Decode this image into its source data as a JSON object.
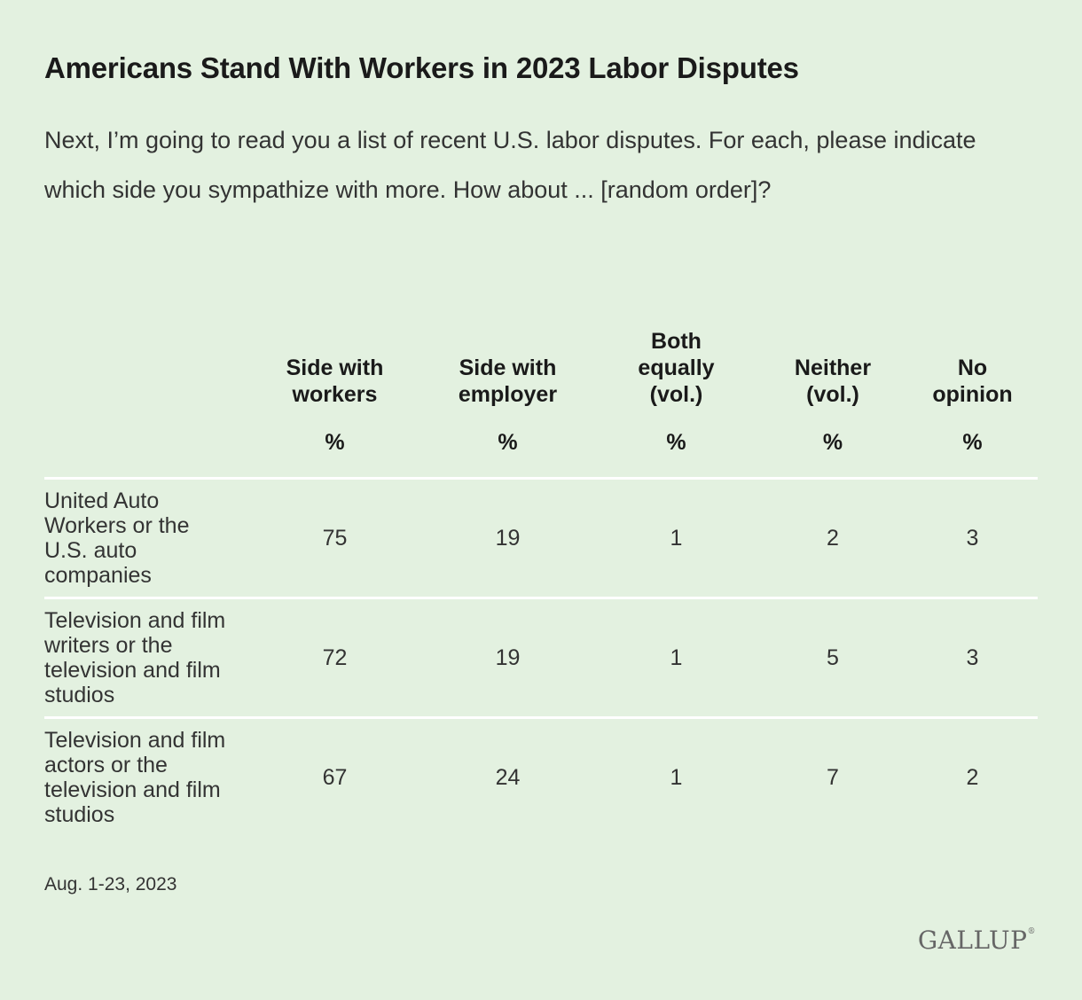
{
  "title": "Americans Stand With Workers in 2023 Labor Disputes",
  "subtitle": "Next, I’m going to read you a list of recent U.S. labor disputes. For each, please indicate which side you sympathize with more. How about ... [random order]?",
  "footnote": "Aug. 1-23, 2023",
  "logo": "GALLUP",
  "chart_data": {
    "type": "table",
    "title": "Americans Stand With Workers in 2023 Labor Disputes",
    "columns": [
      {
        "label": "Side with workers",
        "unit": "%"
      },
      {
        "label": "Side with employer",
        "unit": "%"
      },
      {
        "label": "Both equally (vol.)",
        "unit": "%"
      },
      {
        "label": "Neither (vol.)",
        "unit": "%"
      },
      {
        "label": "No opinion",
        "unit": "%"
      }
    ],
    "rows": [
      {
        "label": "United Auto Workers or the U.S. auto companies",
        "values": [
          75,
          19,
          1,
          2,
          3
        ]
      },
      {
        "label": "Television and film writers or the television and film studios",
        "values": [
          72,
          19,
          1,
          5,
          3
        ]
      },
      {
        "label": "Television and film actors or the television and film studios",
        "values": [
          67,
          24,
          1,
          7,
          2
        ]
      }
    ]
  },
  "colors": {
    "background": "#e3f1e0",
    "divider": "#ffffff"
  }
}
